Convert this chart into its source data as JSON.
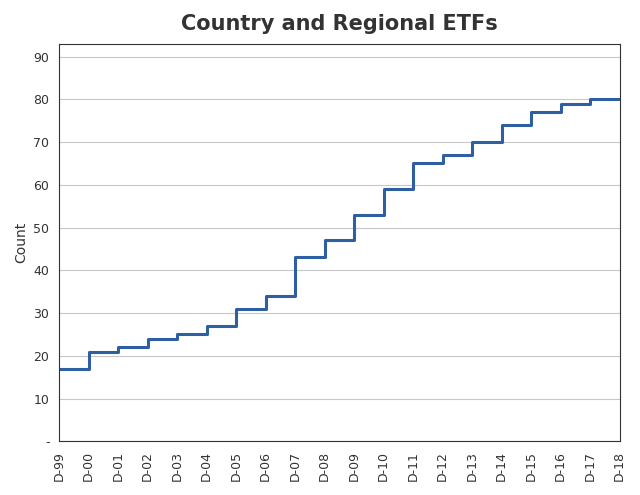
{
  "title": "Country and Regional ETFs",
  "ylabel": "Count",
  "xlabel": "",
  "line_color": "#2e5fa3",
  "line_width": 2.2,
  "background_color": "#ffffff",
  "grid_color": "#c8c8c8",
  "title_fontsize": 15,
  "title_fontweight": "bold",
  "tick_fontsize": 9,
  "ylabel_fontsize": 10,
  "x_labels": [
    "D-99",
    "D-00",
    "D-01",
    "D-02",
    "D-03",
    "D-04",
    "D-05",
    "D-06",
    "D-07",
    "D-08",
    "D-09",
    "D-10",
    "D-11",
    "D-12",
    "D-13",
    "D-14",
    "D-15",
    "D-16",
    "D-17",
    "D-18"
  ],
  "y_values": [
    17,
    21,
    22,
    24,
    25,
    27,
    31,
    34,
    43,
    47,
    53,
    59,
    65,
    67,
    70,
    74,
    77,
    79,
    80,
    80
  ],
  "ylim": [
    0,
    93
  ],
  "yticks": [
    0,
    10,
    20,
    30,
    40,
    50,
    60,
    70,
    80,
    90
  ],
  "ytick_labels": [
    "-",
    "10",
    "20",
    "30",
    "40",
    "50",
    "60",
    "70",
    "80",
    "90"
  ],
  "spine_color": "#333333",
  "box_border": true
}
